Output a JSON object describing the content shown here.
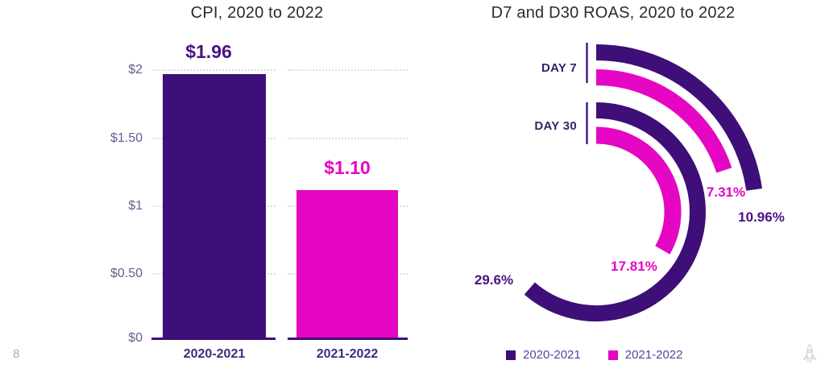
{
  "page": {
    "number": "8"
  },
  "colors": {
    "purple": "#3E0F78",
    "magenta": "#E506C3",
    "value_purple": "#4A1282",
    "title_text": "#2c2c2c",
    "axis_tick_text": "#6C5C91",
    "category_text": "#3E2A7C",
    "legend_text": "#55459B",
    "gridline": "#dedede"
  },
  "chart_data": [
    {
      "type": "bar",
      "title": "CPI, 2020 to 2022",
      "categories": [
        "2020-2021",
        "2021-2022"
      ],
      "values": [
        1.96,
        1.1
      ],
      "value_labels": [
        "$1.96",
        "$1.10"
      ],
      "bar_colors": [
        "purple",
        "magenta"
      ],
      "y_ticks": [
        "$2",
        "$1.50",
        "$1",
        "$0.50",
        "$0"
      ],
      "ylim": [
        0,
        2
      ],
      "grid": "horizontal-dotted",
      "xlabel": "",
      "ylabel": ""
    },
    {
      "type": "radial-bar",
      "title": "D7 and D30 ROAS, 2020 to 2022",
      "groups": [
        "DAY 7",
        "DAY 30"
      ],
      "series": [
        {
          "name": "2020-2021",
          "color": "purple",
          "values": [
            10.96,
            29.6
          ],
          "labels": [
            "10.96%",
            "29.6%"
          ]
        },
        {
          "name": "2021-2022",
          "color": "magenta",
          "values": [
            7.31,
            17.81
          ],
          "labels": [
            "7.31%",
            "17.81%"
          ]
        }
      ],
      "legend_position": "bottom",
      "arcs": [
        {
          "id": "day7-2020-2021",
          "group": "DAY 7",
          "series": "2020-2021",
          "value": 10.96,
          "label": "10.96%",
          "color": "purple",
          "radius": 198,
          "thickness": 20,
          "sweep_deg": 82
        },
        {
          "id": "day7-2021-2022",
          "group": "DAY 7",
          "series": "2021-2022",
          "value": 7.31,
          "label": "7.31%",
          "color": "magenta",
          "radius": 167,
          "thickness": 20,
          "sweep_deg": 72
        },
        {
          "id": "day30-2020-2021",
          "group": "DAY 30",
          "series": "2020-2021",
          "value": 29.6,
          "label": "29.6%",
          "color": "purple",
          "radius": 126,
          "thickness": 20,
          "sweep_deg": 221
        },
        {
          "id": "day30-2021-2022",
          "group": "DAY 30",
          "series": "2021-2022",
          "value": 17.81,
          "label": "17.81%",
          "color": "magenta",
          "radius": 95,
          "thickness": 21,
          "sweep_deg": 120
        }
      ]
    }
  ]
}
